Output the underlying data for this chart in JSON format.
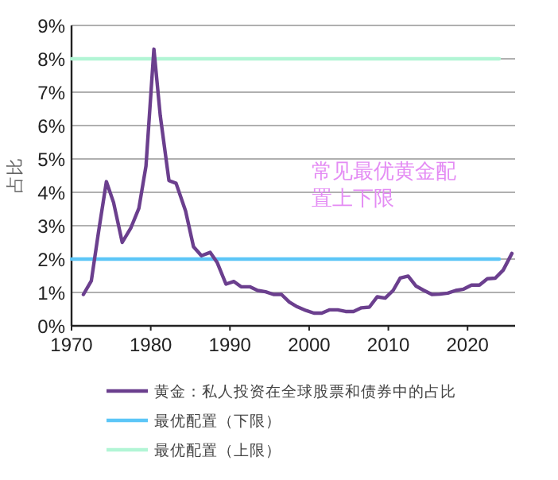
{
  "chart_data": {
    "type": "line",
    "ylabel": "占比",
    "annotations": [
      "常见最优黄金配置上下限"
    ],
    "xlim": [
      1970,
      2026
    ],
    "ylim": [
      0,
      9
    ],
    "xticks": [
      1970,
      1980,
      1990,
      2000,
      2010,
      2020
    ],
    "yticks": [
      {
        "value": 0,
        "label": "0%"
      },
      {
        "value": 1,
        "label": "1%"
      },
      {
        "value": 2,
        "label": "2%"
      },
      {
        "value": 3,
        "label": "3%"
      },
      {
        "value": 4,
        "label": "4%"
      },
      {
        "value": 5,
        "label": "5%"
      },
      {
        "value": 6,
        "label": "6%"
      },
      {
        "value": 7,
        "label": "7%"
      },
      {
        "value": 8,
        "label": "8%"
      },
      {
        "value": 9,
        "label": "9%"
      }
    ],
    "grid": "y",
    "legend": "bottom",
    "marker": "none",
    "line_style": "solid",
    "series": [
      {
        "name": "黄金：私人投资在全球股票和债券中的占比",
        "color": "#6b3f8e",
        "x": [
          1971.5,
          1972.5,
          1973.4,
          1974.4,
          1975.3,
          1976.4,
          1977.5,
          1978.5,
          1979.4,
          1980.4,
          1981.2,
          1982.3,
          1983.2,
          1984.4,
          1985.4,
          1986.4,
          1987.5,
          1988.4,
          1989.5,
          1990.5,
          1991.4,
          1992.5,
          1993.5,
          1994.5,
          1995.5,
          1996.5,
          1997.5,
          1998.5,
          1999.6,
          2000.6,
          2001.6,
          2002.6,
          2003.6,
          2004.6,
          2005.6,
          2006.6,
          2007.6,
          2008.6,
          2009.6,
          2010.6,
          2011.5,
          2012.5,
          2013.5,
          2014.5,
          2015.5,
          2016.5,
          2017.5,
          2018.5,
          2019.5,
          2020.5,
          2021.5,
          2022.5,
          2023.5,
          2024.5,
          2025.6
        ],
        "values": [
          0.94,
          1.35,
          2.8,
          4.32,
          3.7,
          2.5,
          2.94,
          3.52,
          4.79,
          8.29,
          6.3,
          4.35,
          4.27,
          3.44,
          2.37,
          2.1,
          2.2,
          1.89,
          1.25,
          1.33,
          1.17,
          1.17,
          1.06,
          1.02,
          0.94,
          0.94,
          0.71,
          0.57,
          0.46,
          0.38,
          0.38,
          0.48,
          0.48,
          0.43,
          0.43,
          0.54,
          0.56,
          0.87,
          0.83,
          1.06,
          1.43,
          1.49,
          1.19,
          1.06,
          0.94,
          0.95,
          0.98,
          1.06,
          1.1,
          1.22,
          1.22,
          1.41,
          1.43,
          1.67,
          2.17
        ]
      },
      {
        "name": "最优配置（下限）",
        "color": "#5cc6f7",
        "x": [
          1970,
          2024
        ],
        "values": [
          2,
          2
        ]
      },
      {
        "name": "最优配置（上限）",
        "color": "#b2f5d5",
        "x": [
          1970,
          2024
        ],
        "values": [
          8,
          8
        ]
      }
    ]
  }
}
